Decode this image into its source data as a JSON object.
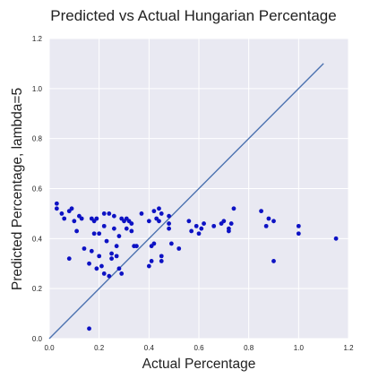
{
  "chart_data": {
    "type": "scatter",
    "title": "Predicted vs Actual Hungarian Percentage",
    "xlabel": "Actual Percentage",
    "ylabel": "Predicted Percentage, lambda=5",
    "xlim": [
      0,
      1.2
    ],
    "ylim": [
      0,
      1.2
    ],
    "xticks": [
      "0.0",
      "0.2",
      "0.4",
      "0.6",
      "0.8",
      "1.0",
      "1.2"
    ],
    "yticks": [
      "0.0",
      "0.2",
      "0.4",
      "0.6",
      "0.8",
      "1.0",
      "1.2"
    ],
    "grid": true,
    "background_color": "#e9e9f2",
    "grid_color": "#ffffff",
    "point_color": "#0d12c4",
    "line_color": "#4c72b0",
    "reference_line": {
      "x": [
        0,
        1.1
      ],
      "y": [
        0,
        1.1
      ]
    },
    "points": [
      {
        "x": 0.03,
        "y": 0.54
      },
      {
        "x": 0.03,
        "y": 0.52
      },
      {
        "x": 0.05,
        "y": 0.5
      },
      {
        "x": 0.06,
        "y": 0.48
      },
      {
        "x": 0.08,
        "y": 0.51
      },
      {
        "x": 0.09,
        "y": 0.52
      },
      {
        "x": 0.1,
        "y": 0.47
      },
      {
        "x": 0.11,
        "y": 0.43
      },
      {
        "x": 0.12,
        "y": 0.49
      },
      {
        "x": 0.13,
        "y": 0.48
      },
      {
        "x": 0.08,
        "y": 0.32
      },
      {
        "x": 0.14,
        "y": 0.36
      },
      {
        "x": 0.16,
        "y": 0.04
      },
      {
        "x": 0.17,
        "y": 0.48
      },
      {
        "x": 0.18,
        "y": 0.47
      },
      {
        "x": 0.18,
        "y": 0.42
      },
      {
        "x": 0.19,
        "y": 0.48
      },
      {
        "x": 0.17,
        "y": 0.35
      },
      {
        "x": 0.16,
        "y": 0.3
      },
      {
        "x": 0.19,
        "y": 0.28
      },
      {
        "x": 0.2,
        "y": 0.42
      },
      {
        "x": 0.2,
        "y": 0.33
      },
      {
        "x": 0.21,
        "y": 0.29
      },
      {
        "x": 0.22,
        "y": 0.5
      },
      {
        "x": 0.22,
        "y": 0.45
      },
      {
        "x": 0.22,
        "y": 0.26
      },
      {
        "x": 0.23,
        "y": 0.39
      },
      {
        "x": 0.24,
        "y": 0.5
      },
      {
        "x": 0.24,
        "y": 0.25
      },
      {
        "x": 0.25,
        "y": 0.34
      },
      {
        "x": 0.25,
        "y": 0.32
      },
      {
        "x": 0.26,
        "y": 0.49
      },
      {
        "x": 0.26,
        "y": 0.44
      },
      {
        "x": 0.27,
        "y": 0.37
      },
      {
        "x": 0.27,
        "y": 0.33
      },
      {
        "x": 0.28,
        "y": 0.41
      },
      {
        "x": 0.28,
        "y": 0.28
      },
      {
        "x": 0.29,
        "y": 0.48
      },
      {
        "x": 0.29,
        "y": 0.26
      },
      {
        "x": 0.3,
        "y": 0.47
      },
      {
        "x": 0.31,
        "y": 0.44
      },
      {
        "x": 0.31,
        "y": 0.48
      },
      {
        "x": 0.32,
        "y": 0.47
      },
      {
        "x": 0.33,
        "y": 0.46
      },
      {
        "x": 0.33,
        "y": 0.43
      },
      {
        "x": 0.34,
        "y": 0.37
      },
      {
        "x": 0.35,
        "y": 0.37
      },
      {
        "x": 0.37,
        "y": 0.5
      },
      {
        "x": 0.4,
        "y": 0.47
      },
      {
        "x": 0.4,
        "y": 0.29
      },
      {
        "x": 0.41,
        "y": 0.31
      },
      {
        "x": 0.41,
        "y": 0.37
      },
      {
        "x": 0.42,
        "y": 0.51
      },
      {
        "x": 0.42,
        "y": 0.38
      },
      {
        "x": 0.43,
        "y": 0.48
      },
      {
        "x": 0.44,
        "y": 0.52
      },
      {
        "x": 0.44,
        "y": 0.47
      },
      {
        "x": 0.45,
        "y": 0.5
      },
      {
        "x": 0.45,
        "y": 0.33
      },
      {
        "x": 0.45,
        "y": 0.31
      },
      {
        "x": 0.48,
        "y": 0.49
      },
      {
        "x": 0.48,
        "y": 0.46
      },
      {
        "x": 0.48,
        "y": 0.44
      },
      {
        "x": 0.49,
        "y": 0.38
      },
      {
        "x": 0.52,
        "y": 0.36
      },
      {
        "x": 0.56,
        "y": 0.47
      },
      {
        "x": 0.57,
        "y": 0.43
      },
      {
        "x": 0.59,
        "y": 0.45
      },
      {
        "x": 0.6,
        "y": 0.42
      },
      {
        "x": 0.61,
        "y": 0.44
      },
      {
        "x": 0.62,
        "y": 0.46
      },
      {
        "x": 0.66,
        "y": 0.45
      },
      {
        "x": 0.69,
        "y": 0.46
      },
      {
        "x": 0.7,
        "y": 0.47
      },
      {
        "x": 0.72,
        "y": 0.44
      },
      {
        "x": 0.73,
        "y": 0.46
      },
      {
        "x": 0.74,
        "y": 0.52
      },
      {
        "x": 0.72,
        "y": 0.43
      },
      {
        "x": 0.85,
        "y": 0.51
      },
      {
        "x": 0.87,
        "y": 0.45
      },
      {
        "x": 0.88,
        "y": 0.48
      },
      {
        "x": 0.9,
        "y": 0.47
      },
      {
        "x": 0.9,
        "y": 0.31
      },
      {
        "x": 1.0,
        "y": 0.45
      },
      {
        "x": 1.0,
        "y": 0.42
      },
      {
        "x": 1.15,
        "y": 0.4
      }
    ]
  }
}
